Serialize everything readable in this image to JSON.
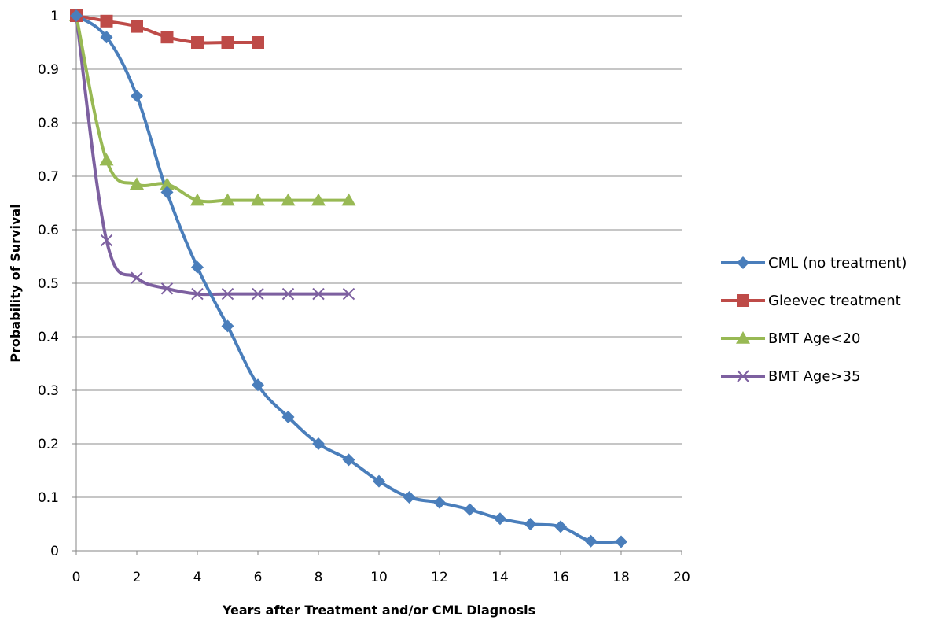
{
  "chart_data": {
    "type": "line",
    "title": "",
    "xlabel": "Years after Treatment and/or CML Diagnosis",
    "ylabel": "Probability of Survival",
    "xlim": [
      0,
      20
    ],
    "ylim": [
      0,
      1
    ],
    "xticks": [
      0,
      2,
      4,
      6,
      8,
      10,
      12,
      14,
      16,
      18,
      20
    ],
    "yticks": [
      0,
      0.1,
      0.2,
      0.3,
      0.4,
      0.5,
      0.6,
      0.7,
      0.8,
      0.9,
      1
    ],
    "grid": "horizontal",
    "legend_position": "right",
    "series": [
      {
        "name": "CML (no treatment)",
        "color": "#4a7ebb",
        "marker": "diamond",
        "x": [
          0,
          1,
          2,
          3,
          4,
          5,
          6,
          7,
          8,
          9,
          10,
          11,
          12,
          13,
          14,
          15,
          16,
          17,
          18
        ],
        "y": [
          1.0,
          0.96,
          0.85,
          0.67,
          0.53,
          0.42,
          0.31,
          0.25,
          0.2,
          0.17,
          0.13,
          0.1,
          0.09,
          0.077,
          0.06,
          0.05,
          0.045,
          0.018,
          0.017
        ]
      },
      {
        "name": "Gleevec treatment",
        "color": "#be4b48",
        "marker": "square",
        "x": [
          0,
          1,
          2,
          3,
          4,
          5,
          6
        ],
        "y": [
          1.0,
          0.99,
          0.98,
          0.96,
          0.95,
          0.95,
          0.95
        ]
      },
      {
        "name": "BMT Age<20",
        "color": "#98b954",
        "marker": "triangle",
        "x": [
          0,
          1,
          2,
          3,
          4,
          5,
          6,
          7,
          8,
          9
        ],
        "y": [
          1.0,
          0.73,
          0.685,
          0.685,
          0.655,
          0.655,
          0.655,
          0.655,
          0.655,
          0.655
        ]
      },
      {
        "name": "BMT Age>35",
        "color": "#7d60a0",
        "marker": "x",
        "x": [
          0,
          1,
          2,
          3,
          4,
          5,
          6,
          7,
          8,
          9
        ],
        "y": [
          1.0,
          0.58,
          0.51,
          0.49,
          0.48,
          0.48,
          0.48,
          0.48,
          0.48,
          0.48
        ]
      }
    ]
  }
}
